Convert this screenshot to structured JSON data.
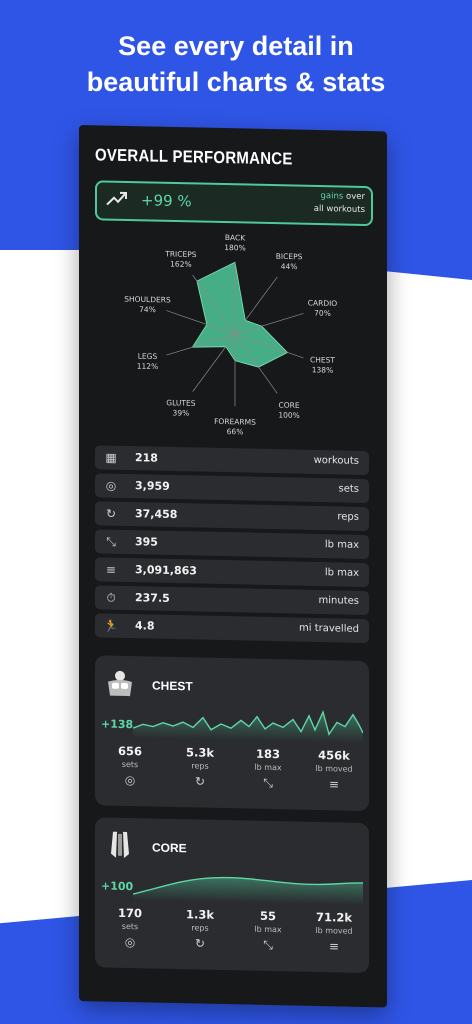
{
  "headline": {
    "line1": "See every detail in",
    "line2": "beautiful charts & stats"
  },
  "panel": {
    "title": "OVERALL PERFORMANCE",
    "gain": {
      "value": "+99 %",
      "label_hl": "gains",
      "label_rest1": "over",
      "label_rest2": "all workouts"
    }
  },
  "radar": {
    "axes": [
      {
        "name": "BACK",
        "pct": "180%"
      },
      {
        "name": "BICEPS",
        "pct": "44%"
      },
      {
        "name": "CARDIO",
        "pct": "70%"
      },
      {
        "name": "CHEST",
        "pct": "138%"
      },
      {
        "name": "CORE",
        "pct": "100%"
      },
      {
        "name": "FOREARMS",
        "pct": "66%"
      },
      {
        "name": "GLUTES",
        "pct": "39%"
      },
      {
        "name": "LEGS",
        "pct": "112%"
      },
      {
        "name": "SHOULDERS",
        "pct": "74%"
      },
      {
        "name": "TRICEPS",
        "pct": "162%"
      }
    ],
    "fill_color": "#4fc99a"
  },
  "stats": [
    {
      "icon": "calendar-icon",
      "glyph": "▦",
      "value": "218",
      "label": "workouts"
    },
    {
      "icon": "sets-icon",
      "glyph": "◎",
      "value": "3,959",
      "label": "sets"
    },
    {
      "icon": "reps-icon",
      "glyph": "↻",
      "value": "37,458",
      "label": "reps"
    },
    {
      "icon": "max-icon",
      "glyph": "⤡",
      "value": "395",
      "label": "lb max"
    },
    {
      "icon": "volume-icon",
      "glyph": "≡",
      "value": "3,091,863",
      "label": "lb max"
    },
    {
      "icon": "timer-icon",
      "glyph": "⏱",
      "value": "237.5",
      "label": "minutes"
    },
    {
      "icon": "run-icon",
      "glyph": "🏃",
      "value": "4.8",
      "label": "mi travelled"
    }
  ],
  "cards": [
    {
      "name": "CHEST",
      "delta": "+138",
      "metrics": [
        {
          "value": "656",
          "label": "sets",
          "glyph": "◎"
        },
        {
          "value": "5.3k",
          "label": "reps",
          "glyph": "↻"
        },
        {
          "value": "183",
          "label": "lb max",
          "glyph": "⤡"
        },
        {
          "value": "456k",
          "label": "lb moved",
          "glyph": "≡"
        }
      ]
    },
    {
      "name": "CORE",
      "delta": "+100",
      "metrics": [
        {
          "value": "170",
          "label": "sets",
          "glyph": "◎"
        },
        {
          "value": "1.3k",
          "label": "reps",
          "glyph": "↻"
        },
        {
          "value": "55",
          "label": "lb max",
          "glyph": "⤡"
        },
        {
          "value": "71.2k",
          "label": "lb moved",
          "glyph": "≡"
        }
      ]
    }
  ],
  "colors": {
    "accent": "#4fc99a",
    "brand_blue": "#2f55e6",
    "panel": "#17181a"
  }
}
